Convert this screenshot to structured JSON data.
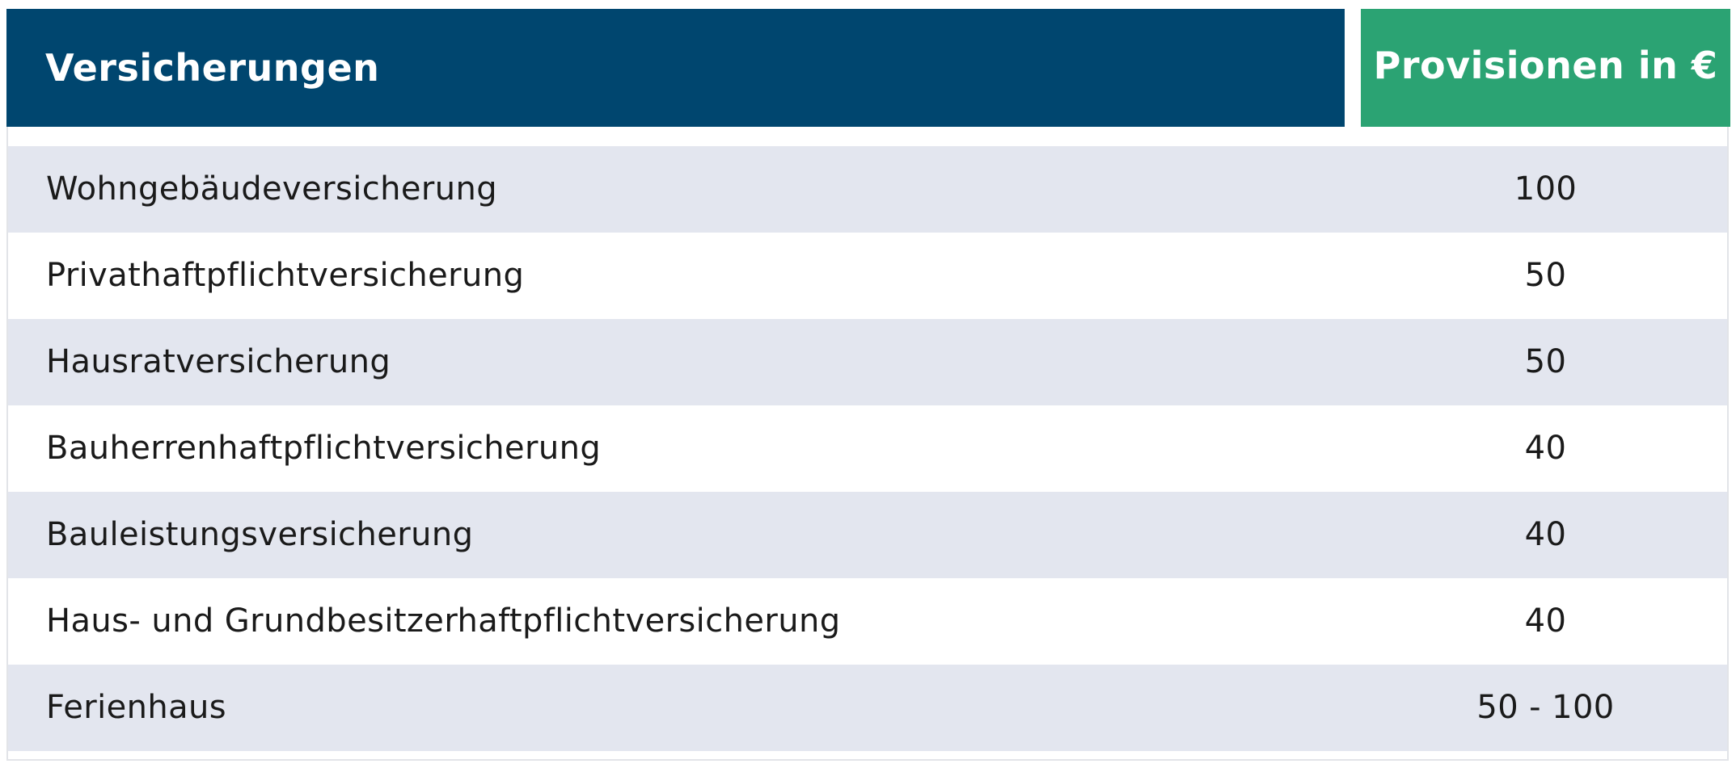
{
  "table": {
    "header": {
      "insurance_label": "Versicherungen",
      "commission_label": "Provisionen in €"
    },
    "rows": [
      {
        "name": "Wohngebäudeversicherung",
        "commission": "100"
      },
      {
        "name": "Privathaftpflichtversicherung",
        "commission": "50"
      },
      {
        "name": "Hausratversicherung",
        "commission": "50"
      },
      {
        "name": "Bauherrenhaftpflichtversicherung",
        "commission": "40"
      },
      {
        "name": "Bauleistungsversicherung",
        "commission": "40"
      },
      {
        "name": "Haus- und Grundbesitzerhaftpflichtversicherung",
        "commission": "40"
      },
      {
        "name": "Ferienhaus",
        "commission": "50 - 100"
      }
    ]
  },
  "colors": {
    "header_primary": "#00466f",
    "header_accent": "#2ba373",
    "row_shaded": "#e3e6ef",
    "row_plain": "#ffffff"
  }
}
